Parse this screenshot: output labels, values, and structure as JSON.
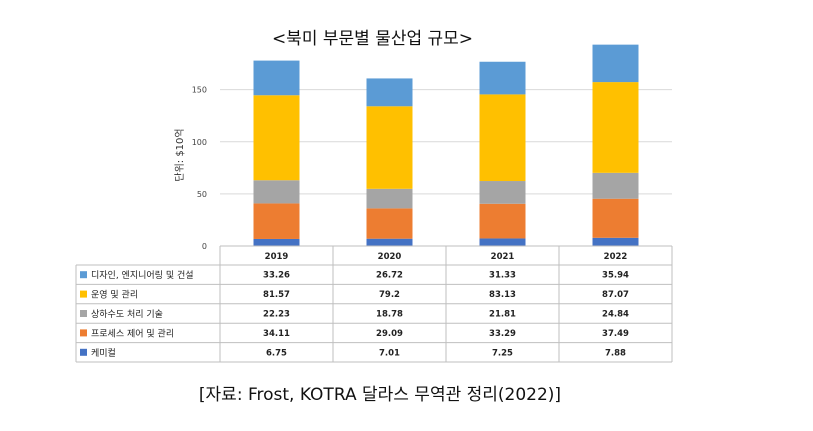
{
  "title": "<북미 부문별 물산업 규모>",
  "source": "[자료: Frost, KOTRA 달라스 무역관 정리(2022)]",
  "colors": {
    "chemical": "#4472C4",
    "process": "#ED7D31",
    "water": "#A5A5A5",
    "operation": "#FFC000",
    "design": "#5B9BD5",
    "grid": "#D9D9D9",
    "table_border": "#BFBFBF"
  },
  "chart_data": {
    "type": "bar",
    "stacked": true,
    "title": "<북미 부문별 물산업 규모>",
    "ylabel": "단위: $10억",
    "ylim": [
      0,
      190
    ],
    "yticks": [
      0,
      50,
      100,
      150
    ],
    "grid": true,
    "categories": [
      "2019",
      "2020",
      "2021",
      "2022"
    ],
    "series": [
      {
        "name": "케미컬",
        "color": "#4472C4",
        "values": [
          "6.75",
          "7.01",
          "7.25",
          "7.88"
        ]
      },
      {
        "name": "프로세스 제어 및 관리",
        "color": "#ED7D31",
        "values": [
          "34.11",
          "29.09",
          "33.29",
          "37.49"
        ]
      },
      {
        "name": "상하수도 처리 기술",
        "color": "#A5A5A5",
        "values": [
          "22.23",
          "18.78",
          "21.81",
          "24.84"
        ]
      },
      {
        "name": "운영 및 관리",
        "color": "#FFC000",
        "values": [
          "81.57",
          "79.2",
          "83.13",
          "87.07"
        ]
      },
      {
        "name": "디자인, 엔지니어링 및 건설",
        "color": "#5B9BD5",
        "values": [
          "33.26",
          "26.72",
          "31.33",
          "35.94"
        ]
      }
    ],
    "table_row_order": [
      4,
      3,
      2,
      1,
      0
    ]
  }
}
